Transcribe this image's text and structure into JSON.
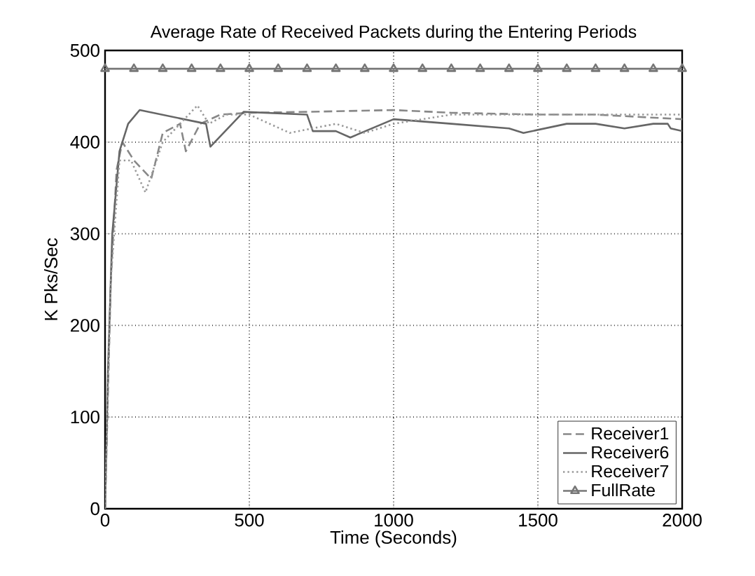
{
  "chart_data": {
    "type": "line",
    "title": "Average Rate of Received Packets during the Entering Periods",
    "xlabel": "Time (Seconds)",
    "ylabel": "K Pks/Sec",
    "xlim": [
      0,
      2000
    ],
    "ylim": [
      0,
      500
    ],
    "xticks": [
      0,
      500,
      1000,
      1500,
      2000
    ],
    "yticks": [
      0,
      100,
      200,
      300,
      400,
      500
    ],
    "grid": true,
    "legend": "bottom right",
    "series": [
      {
        "name": "Receiver1",
        "color": "#888888",
        "line_style": "dashed",
        "marker": "none",
        "x": [
          0,
          20,
          40,
          60,
          100,
          160,
          200,
          260,
          280,
          330,
          400,
          500,
          700,
          1000,
          1200,
          1500,
          1700,
          2000
        ],
        "values": [
          0,
          250,
          370,
          400,
          380,
          360,
          410,
          420,
          390,
          420,
          430,
          432,
          433,
          435,
          432,
          430,
          430,
          425
        ]
      },
      {
        "name": "Receiver6",
        "color": "#666666",
        "line_style": "solid",
        "marker": "none",
        "x": [
          0,
          10,
          25,
          50,
          80,
          120,
          350,
          365,
          480,
          700,
          720,
          800,
          850,
          1000,
          1200,
          1400,
          1450,
          1600,
          1700,
          1800,
          1900,
          1950,
          1960,
          2000
        ],
        "values": [
          0,
          150,
          300,
          390,
          420,
          435,
          420,
          395,
          433,
          430,
          412,
          412,
          405,
          425,
          420,
          415,
          410,
          420,
          420,
          415,
          420,
          420,
          415,
          412
        ]
      },
      {
        "name": "Receiver7",
        "color": "#999999",
        "line_style": "dotted",
        "marker": "none",
        "x": [
          0,
          20,
          50,
          90,
          140,
          200,
          320,
          360,
          420,
          500,
          640,
          800,
          900,
          1000,
          1200,
          1500,
          1800,
          2000
        ],
        "values": [
          0,
          250,
          380,
          380,
          345,
          400,
          440,
          420,
          430,
          430,
          410,
          420,
          410,
          420,
          430,
          430,
          430,
          430
        ]
      },
      {
        "name": "FullRate",
        "color": "#777777",
        "line_style": "solid",
        "marker": "triangle",
        "x": [
          0,
          100,
          200,
          300,
          400,
          500,
          600,
          700,
          800,
          900,
          1000,
          1100,
          1200,
          1300,
          1400,
          1500,
          1600,
          1700,
          1800,
          1900,
          2000
        ],
        "values": [
          480,
          480,
          480,
          480,
          480,
          480,
          480,
          480,
          480,
          480,
          480,
          480,
          480,
          480,
          480,
          480,
          480,
          480,
          480,
          480,
          480
        ]
      }
    ]
  }
}
